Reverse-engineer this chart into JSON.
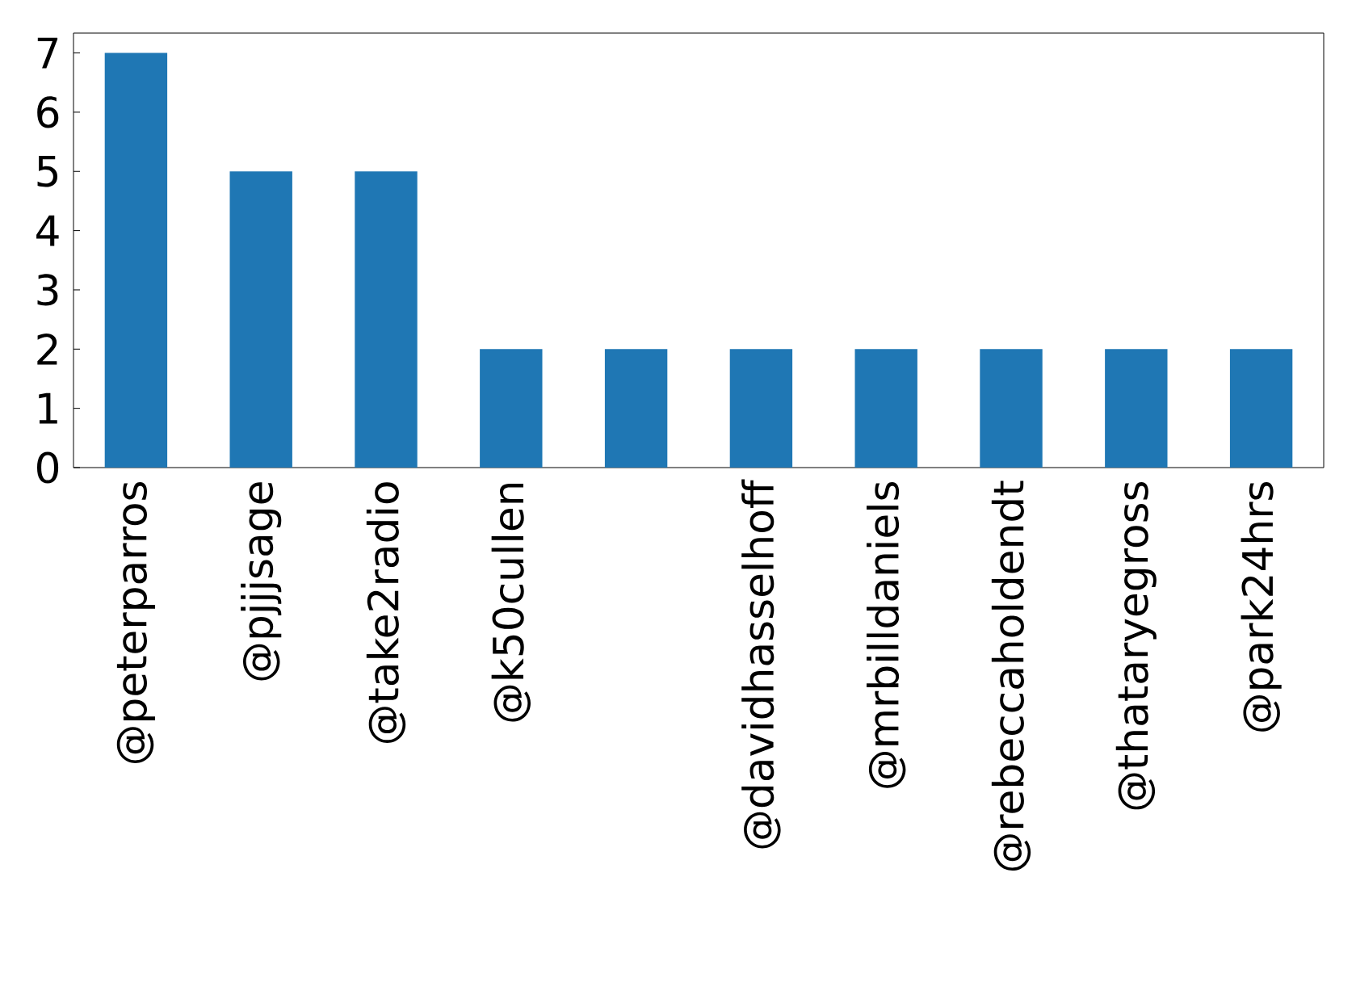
{
  "chart_data": {
    "type": "bar",
    "categories": [
      "@peterparros",
      "@pjjjsage",
      "@take2radio",
      "@k50cullen",
      null,
      "@davidhasselhoff",
      "@mrbilldaniels",
      "@rebeccaholdendt",
      "@thataryegross",
      "@park24hrs"
    ],
    "values": [
      7,
      5,
      5,
      2,
      2,
      2,
      2,
      2,
      2,
      2
    ],
    "color": "#1f77b4",
    "ylim": [
      0,
      7.335
    ],
    "yticks": [
      0,
      1,
      2,
      3,
      4,
      5,
      6,
      7
    ]
  }
}
